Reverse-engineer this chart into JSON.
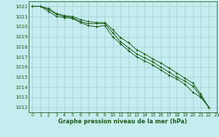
{
  "title": "Graphe pression niveau de la mer (hPa)",
  "bg_color": "#c5ecee",
  "grid_color": "#9ecdd4",
  "line_color": "#1a5c1a",
  "xlim": [
    -0.5,
    23
  ],
  "ylim": [
    1011.5,
    1022.5
  ],
  "yticks": [
    1012,
    1013,
    1014,
    1015,
    1016,
    1017,
    1018,
    1019,
    1020,
    1021,
    1022
  ],
  "xticks": [
    0,
    1,
    2,
    3,
    4,
    5,
    6,
    7,
    8,
    9,
    10,
    11,
    12,
    13,
    14,
    15,
    16,
    17,
    18,
    19,
    20,
    21,
    22,
    23
  ],
  "series1_x": [
    0,
    1,
    2,
    3,
    4,
    5,
    6,
    7,
    8,
    9,
    10,
    11,
    12,
    13,
    14,
    15,
    16,
    17,
    18,
    19,
    20,
    21,
    22
  ],
  "series1_y": [
    1022,
    1022,
    1021.7,
    1021.2,
    1021.0,
    1020.9,
    1020.5,
    1020.3,
    1020.3,
    1020.3,
    1019.4,
    1018.5,
    1017.9,
    1017.3,
    1016.9,
    1016.5,
    1016.0,
    1015.5,
    1015.0,
    1014.6,
    1014.1,
    1013.1,
    1012.0
  ],
  "series2_x": [
    0,
    1,
    2,
    3,
    4,
    5,
    6,
    7,
    8,
    9,
    10,
    11,
    12,
    13,
    14,
    15,
    16,
    17,
    18,
    19,
    20,
    21,
    22
  ],
  "series2_y": [
    1022,
    1022,
    1021.5,
    1021.0,
    1020.9,
    1020.8,
    1020.4,
    1020.1,
    1020.0,
    1020.1,
    1019.0,
    1018.3,
    1017.6,
    1017.0,
    1016.6,
    1016.2,
    1015.7,
    1015.2,
    1014.8,
    1014.3,
    1013.5,
    1013.0,
    1012.0
  ],
  "series3_x": [
    0,
    1,
    2,
    3,
    4,
    5,
    6,
    7,
    8,
    9,
    10,
    11,
    12,
    13,
    14,
    15,
    16,
    17,
    18,
    19,
    20,
    21,
    22
  ],
  "series3_y": [
    1022,
    1022,
    1021.8,
    1021.3,
    1021.1,
    1021.0,
    1020.7,
    1020.5,
    1020.4,
    1020.4,
    1019.7,
    1018.9,
    1018.4,
    1017.7,
    1017.3,
    1016.8,
    1016.4,
    1015.9,
    1015.4,
    1014.9,
    1014.4,
    1013.3,
    1012.0
  ],
  "ylabel_fontsize": 5.2,
  "xlabel_fontsize": 4.8,
  "title_fontsize": 6.0,
  "linewidth": 0.7,
  "markersize": 2.5
}
